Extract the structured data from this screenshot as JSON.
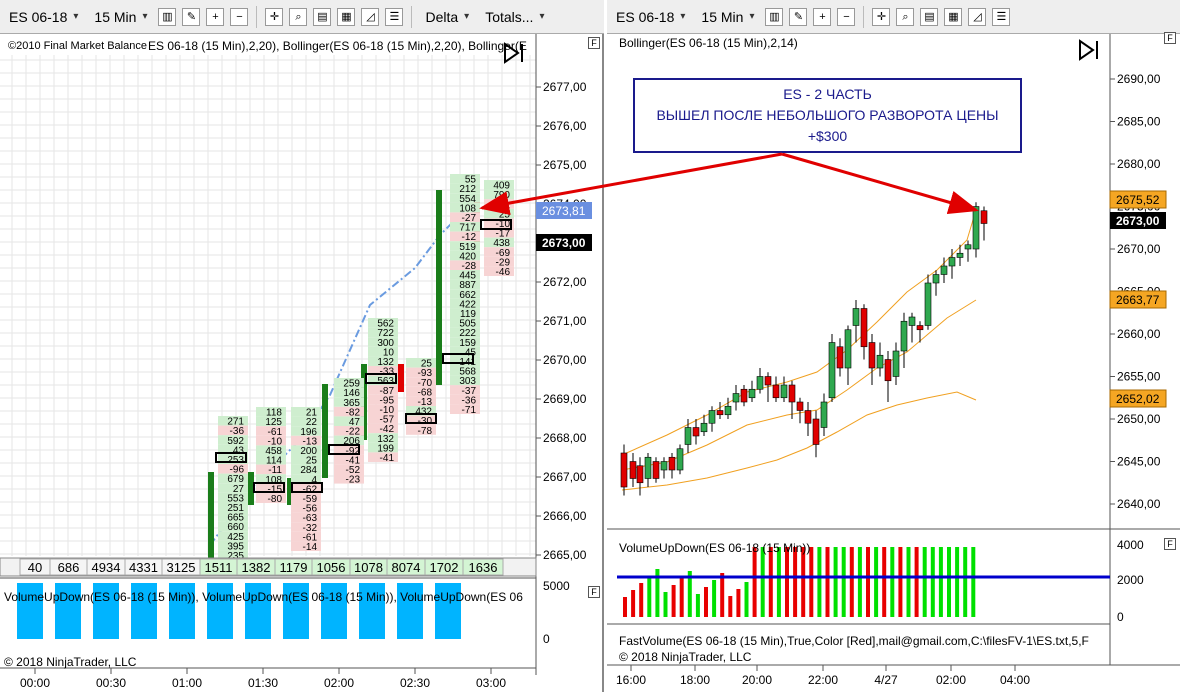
{
  "left_window": {
    "toolbar": {
      "instrument": "ES 06-18",
      "interval": "15 Min",
      "delta_label": "Delta",
      "totals_label": "Totals..."
    },
    "copyright_left": "©2010 Final Market Balance",
    "indicator_header": "ES 06-18 (15 Min),2,20), Bollinger(ES 06-18 (15 Min),2,20), Bollinger(E",
    "price_ticks": [
      "2677,00",
      "2676,00",
      "2675,00",
      "2674,00",
      "2673,00",
      "2672,00",
      "2671,00",
      "2670,00",
      "2669,00",
      "2668,00",
      "2667,00",
      "2666,00",
      "2665,00"
    ],
    "price_badge_blue": "2673,81",
    "price_badge_black": "2673,00",
    "totals_row": [
      "40",
      "686",
      "4934",
      "4331",
      "3125",
      "1511",
      "1382",
      "1179",
      "1056",
      "1078",
      "8074",
      "1702",
      "1636"
    ],
    "volume_header": "VolumeUpDown(ES 06-18 (15 Min)), VolumeUpDown(ES 06-18 (15 Min)), VolumeUpDown(ES 06",
    "volume_ticks": [
      "5000",
      "0"
    ],
    "footer": "© 2018 NinjaTrader, LLC",
    "time_ticks": [
      "00:00",
      "00:30",
      "01:00",
      "01:30",
      "02:00",
      "02:30",
      "03:00"
    ],
    "footprint": [
      {
        "col": 0,
        "cells": [
          "271",
          "-36",
          "592",
          "43",
          "253",
          "-96",
          "679",
          "27",
          "553",
          "251",
          "665",
          "660",
          "425",
          "395",
          "235"
        ]
      },
      {
        "col": 1,
        "cells": [
          "118",
          "125",
          "-61",
          "-10",
          "458",
          "114",
          "-11",
          "108",
          "-15",
          "-80"
        ]
      },
      {
        "col": 2,
        "cells": [
          "21",
          "22",
          "196",
          "-13",
          "200",
          "25",
          "284",
          "4",
          "-62",
          "-59",
          "-56",
          "-63",
          "-32",
          "-61",
          "-14"
        ]
      },
      {
        "col": 3,
        "cells": [
          "259",
          "146",
          "365",
          "-82",
          "47",
          "-22",
          "206",
          "-92",
          "-41",
          "-52",
          "-23"
        ]
      },
      {
        "col": 4,
        "cells": [
          "562",
          "722",
          "300",
          "10",
          "132",
          "-33",
          "563",
          "-87",
          "-95",
          "-10",
          "-57",
          "-42",
          "132",
          "199",
          "-41"
        ]
      },
      {
        "col": 5,
        "cells": [
          "25",
          "-93",
          "-70",
          "-68",
          "-13",
          "432",
          "-30",
          "-78"
        ]
      },
      {
        "col": 6,
        "cells": [
          "55",
          "212",
          "554",
          "108",
          "-27",
          "717",
          "-12",
          "519",
          "420",
          "-28",
          "445",
          "887",
          "662",
          "422",
          "119",
          "505",
          "222",
          "159",
          "45",
          "141",
          "568",
          "303",
          "-37",
          "-36",
          "-71"
        ]
      },
      {
        "col": 7,
        "cells": [
          "409",
          "790",
          "-51",
          "25",
          "-10",
          "-17",
          "438",
          "-69",
          "-29",
          "-46"
        ]
      }
    ]
  },
  "right_window": {
    "toolbar": {
      "instrument": "ES 06-18",
      "interval": "15 Min"
    },
    "indicator_header": "Bollinger(ES 06-18 (15 Min),2,14)",
    "price_ticks": [
      "2690,00",
      "2685,00",
      "2680,00",
      "2675,00",
      "2670,00",
      "2665,00",
      "2660,00",
      "2655,00",
      "2650,00",
      "2645,00",
      "2640,00"
    ],
    "badges": {
      "upper": "2675,52",
      "last": "2673,00",
      "middle": "2663,77",
      "lower": "2652,02"
    },
    "annotation": {
      "line1": "ES - 2 ЧАСТЬ",
      "line2": "ВЫШЕЛ ПОСЛЕ НЕБОЛЬШОГО РАЗВОРОТА ЦЕНЫ",
      "line3": "+$300"
    },
    "volume_header": "VolumeUpDown(ES 06-18 (15 Min))",
    "volume_ticks": [
      "4000",
      "2000",
      "0"
    ],
    "fastvolume_header": "FastVolume(ES 06-18 (15 Min),True,Color [Red],mail@gmail.com,C:\\filesFV-1\\ES.txt,5,F",
    "footer": "© 2018 NinjaTrader, LLC",
    "time_ticks": [
      "16:00",
      "18:00",
      "20:00",
      "22:00",
      "4/27",
      "02:00",
      "04:00"
    ]
  },
  "colors": {
    "bull_bar": "#1a7d1a",
    "bear_bar": "#e00000",
    "bollinger": "#f0a020",
    "vol_blue": "#00b4ff",
    "annotation_border": "#1a1a8c",
    "arrow": "#e00000",
    "ma_dash": "#6a9be0"
  }
}
